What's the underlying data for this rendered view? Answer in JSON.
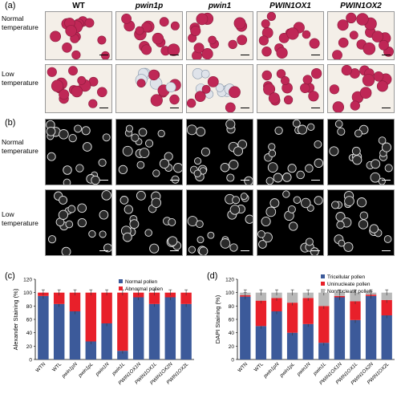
{
  "figure": {
    "panels": {
      "a": "(a)",
      "b": "(b)",
      "c": "(c)",
      "d": "(d)"
    },
    "columns": [
      {
        "label": "WT",
        "italic": false
      },
      {
        "label": "pwin1p",
        "italic": true
      },
      {
        "label": "pwin1",
        "italic": true
      },
      {
        "label": "PWIN1OX1",
        "italic": true
      },
      {
        "label": "PWIN1OX2",
        "italic": true
      }
    ],
    "rows_a": [
      [
        "Normal",
        "temperature"
      ],
      [
        "Low",
        "temperature"
      ]
    ],
    "rows_b": [
      [
        "Normal",
        "temperature"
      ],
      [
        "Low",
        "temperature"
      ]
    ],
    "colors": {
      "blue": "#3c5a9a",
      "red": "#e8202a",
      "gray": "#b8b8b8",
      "pollen": "#bf2756",
      "micro_bg": "#000000"
    }
  },
  "chart_data": [
    {
      "type": "bar",
      "stacked": true,
      "ylabel": "Alexander Staining (%)",
      "ylim": [
        0,
        120
      ],
      "yticks": [
        0,
        20,
        40,
        60,
        80,
        100,
        120
      ],
      "categories": [
        "WTN",
        "WTL",
        "pwin1pN",
        "pwin1pL",
        "pwin1N",
        "pwin1L",
        "PWIN1OX1N",
        "PWIN1OX1L",
        "PWIN1OX2N",
        "PWIN1OX2L"
      ],
      "italic": [
        false,
        false,
        true,
        true,
        true,
        true,
        true,
        true,
        true,
        true
      ],
      "series": [
        {
          "name": "Normal pollen",
          "values": [
            95,
            83,
            72,
            27,
            54,
            13,
            93,
            83,
            93,
            83
          ]
        },
        {
          "name": "Abnormal pollen",
          "values": [
            5,
            17,
            28,
            73,
            46,
            87,
            7,
            17,
            7,
            17
          ]
        }
      ],
      "legend": "top-right"
    },
    {
      "type": "bar",
      "stacked": true,
      "ylabel": "DAPI Staining (%)",
      "ylim": [
        0,
        120
      ],
      "yticks": [
        0,
        20,
        40,
        60,
        80,
        100,
        120
      ],
      "categories": [
        "WTN",
        "WTL",
        "pwin1pN",
        "pwin1pL",
        "pwin1N",
        "pwin1L",
        "PWIN1OX1N",
        "PWIN1OX1L",
        "PWIN1OX2N",
        "PWIN1OX2L"
      ],
      "italic": [
        false,
        false,
        true,
        true,
        true,
        true,
        true,
        true,
        true,
        true
      ],
      "series": [
        {
          "name": "Tricellular pollen",
          "values": [
            94,
            50,
            72,
            40,
            53,
            25,
            93,
            59,
            95,
            66
          ]
        },
        {
          "name": "Uninucleate pollen",
          "values": [
            2,
            38,
            20,
            45,
            39,
            55,
            2,
            28,
            2,
            23
          ]
        },
        {
          "name": "Nonnucleate pollen",
          "values": [
            4,
            12,
            8,
            15,
            8,
            20,
            5,
            13,
            3,
            11
          ]
        }
      ],
      "legend": "top-right"
    }
  ]
}
